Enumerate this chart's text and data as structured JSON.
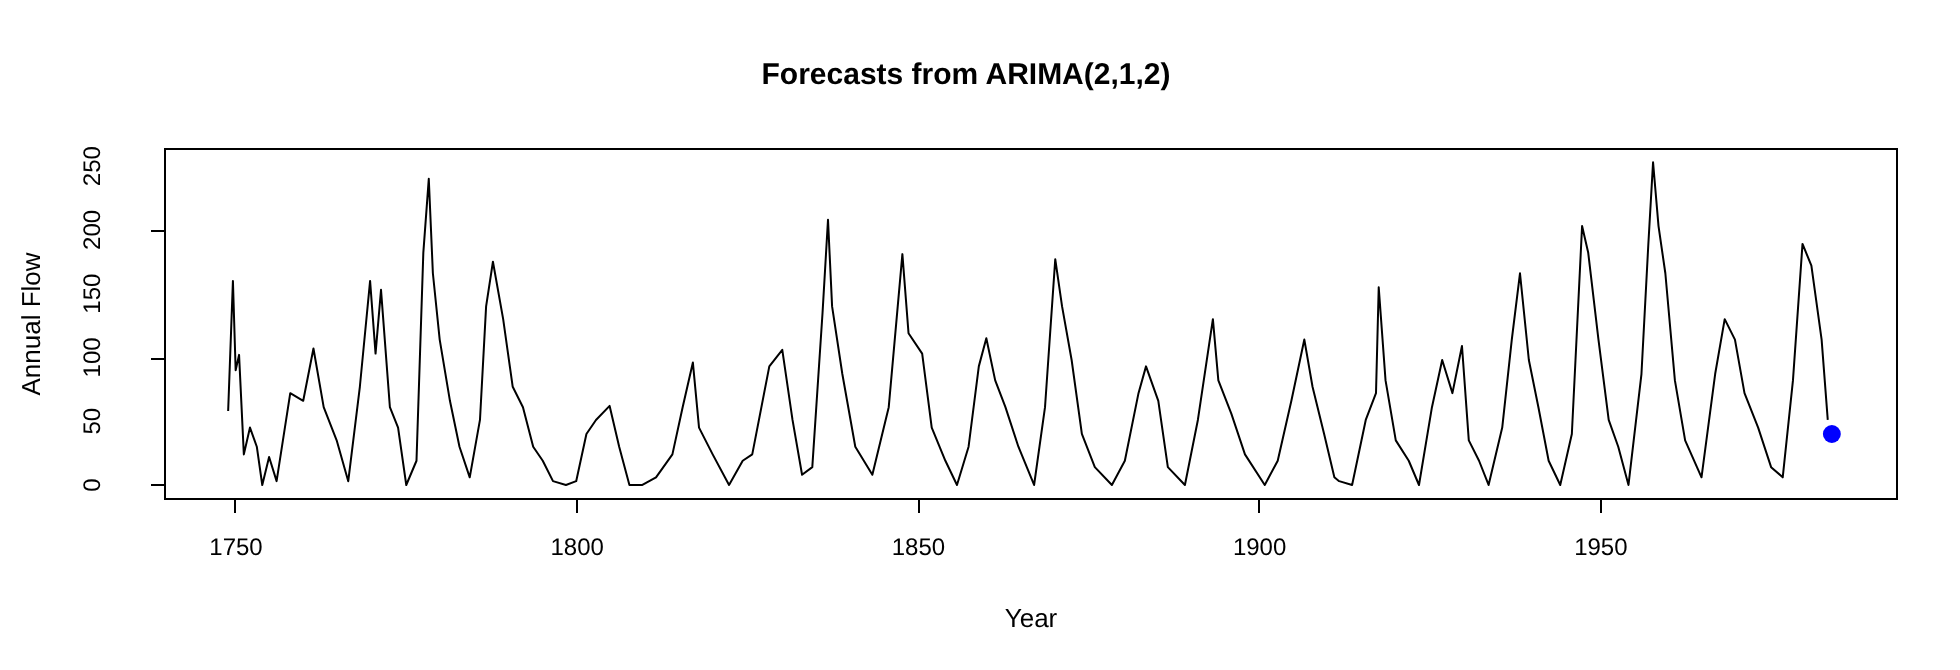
{
  "chart_data": {
    "type": "line",
    "title": "Forecasts from ARIMA(2,1,2)",
    "xlabel": "Year",
    "ylabel": "Annual Flow",
    "xlim": [
      1739.6,
      1993.4
    ],
    "xticks": [
      1750,
      1800,
      1850,
      1900,
      1950
    ],
    "ylim": [
      -10.2,
      264.2
    ],
    "yticks": [
      0,
      50,
      100,
      150,
      200,
      250
    ],
    "grid": false,
    "series": [
      {
        "color": "#000000",
        "marker": "none",
        "x": [
          1749.0,
          1749.7,
          1750.1,
          1750.6,
          1751.3,
          1752.2,
          1753.2,
          1754.0,
          1755.0,
          1756.1,
          1758.1,
          1760.0,
          1761.5,
          1763.0,
          1764.9,
          1766.6,
          1768.3,
          1769.8,
          1770.6,
          1771.4,
          1772.7,
          1773.9,
          1775.1,
          1776.6,
          1777.6,
          1778.4,
          1779.0,
          1780.0,
          1781.5,
          1782.9,
          1784.4,
          1785.9,
          1786.8,
          1787.8,
          1789.3,
          1790.7,
          1792.2,
          1793.7,
          1795.1,
          1796.6,
          1798.5,
          1800.0,
          1801.5,
          1802.9,
          1804.9,
          1806.3,
          1807.8,
          1809.7,
          1811.7,
          1814.1,
          1815.6,
          1817.1,
          1818.0,
          1820.0,
          1822.4,
          1824.4,
          1825.8,
          1828.3,
          1830.2,
          1831.7,
          1833.1,
          1834.6,
          1836.1,
          1836.9,
          1837.5,
          1839.0,
          1840.9,
          1843.4,
          1845.8,
          1847.8,
          1848.7,
          1850.7,
          1852.1,
          1854.1,
          1855.8,
          1857.5,
          1859.0,
          1860.1,
          1861.4,
          1862.9,
          1864.8,
          1867.1,
          1868.7,
          1870.2,
          1871.2,
          1872.6,
          1874.1,
          1876.0,
          1878.5,
          1880.4,
          1882.4,
          1883.5,
          1885.3,
          1886.7,
          1889.2,
          1891.1,
          1893.3,
          1894.1,
          1896.0,
          1898.0,
          1900.9,
          1902.8,
          1904.8,
          1906.7,
          1907.9,
          1909.6,
          1911.1,
          1911.8,
          1913.7,
          1915.7,
          1917.2,
          1917.6,
          1918.6,
          1920.1,
          1922.0,
          1923.5,
          1925.4,
          1926.9,
          1928.4,
          1929.8,
          1930.8,
          1932.3,
          1933.7,
          1935.7,
          1937.1,
          1938.3,
          1939.6,
          1941.0,
          1942.5,
          1944.2,
          1945.9,
          1947.4,
          1948.3,
          1949.8,
          1951.3,
          1952.7,
          1954.2,
          1956.1,
          1957.1,
          1957.8,
          1958.6,
          1959.6,
          1961.0,
          1962.5,
          1964.9,
          1966.9,
          1968.3,
          1969.8,
          1971.2,
          1973.2,
          1975.1,
          1976.8,
          1978.3,
          1979.7,
          1981.0,
          1982.5,
          1983.4
        ],
        "values": [
          58,
          160,
          90,
          102,
          24,
          45,
          30,
          0,
          22,
          3,
          72,
          66,
          107,
          61,
          35,
          3,
          77,
          160,
          103,
          153,
          61,
          45,
          0,
          19,
          182,
          240,
          166,
          114,
          66,
          30,
          6,
          51,
          140,
          175,
          130,
          77,
          61,
          30,
          19,
          3,
          0,
          3,
          40,
          51,
          62,
          30,
          0,
          0,
          6,
          24,
          61,
          96,
          45,
          24,
          0,
          19,
          24,
          93,
          106,
          51,
          8,
          14,
          135,
          208,
          140,
          87,
          30,
          8,
          61,
          181,
          119,
          103,
          45,
          19,
          0,
          30,
          93,
          115,
          82,
          61,
          30,
          0,
          61,
          177,
          140,
          98,
          40,
          14,
          0,
          19,
          72,
          93,
          66,
          14,
          0,
          51,
          130,
          82,
          56,
          24,
          0,
          19,
          66,
          114,
          77,
          40,
          6,
          3,
          0,
          51,
          72,
          155,
          82,
          35,
          19,
          0,
          61,
          98,
          72,
          109,
          35,
          19,
          0,
          45,
          114,
          166,
          98,
          61,
          19,
          0,
          40,
          203,
          182,
          114,
          51,
          30,
          0,
          87,
          188,
          253,
          203,
          166,
          82,
          35,
          6,
          87,
          130,
          114,
          72,
          45,
          14,
          6,
          82,
          189,
          172,
          114,
          51
        ]
      },
      {
        "type": "scatter",
        "color": "#0000ff",
        "marker": "circle",
        "x": [
          1984.0
        ],
        "values": [
          40
        ]
      }
    ]
  }
}
